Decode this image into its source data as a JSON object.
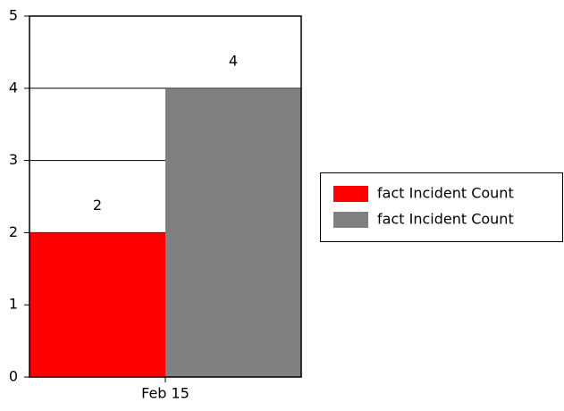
{
  "chart_data": {
    "type": "bar",
    "categories": [
      "Feb 15"
    ],
    "series": [
      {
        "name": "fact Incident Count",
        "color": "#ff0000",
        "values": [
          2
        ]
      },
      {
        "name": "fact Incident Count",
        "color": "#808080",
        "values": [
          4
        ]
      }
    ],
    "ylim": [
      0,
      5
    ],
    "yticks": [
      0,
      1,
      2,
      3,
      4,
      5
    ],
    "grid": true,
    "legend": "right"
  }
}
